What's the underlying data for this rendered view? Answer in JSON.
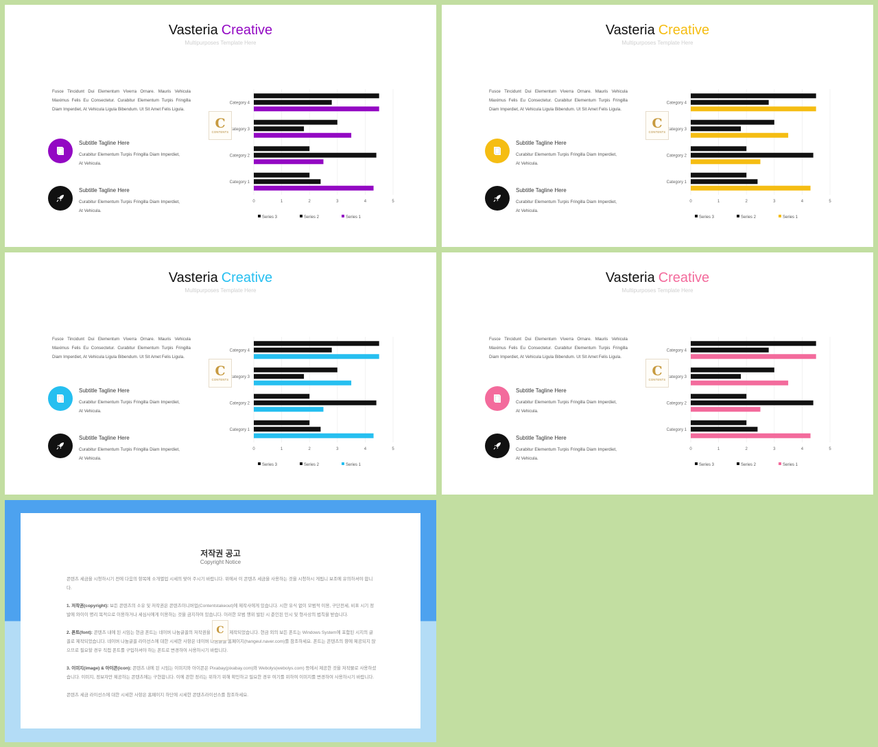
{
  "slides": [
    {
      "title_main": "Vasteria",
      "title_accent": "Creative",
      "subtitle": "Multipurposes Template Here",
      "accent": "#9309c3",
      "description": "Fusce Tincidunt Dui Elementum Viverra Ornare. Mauris Vehicula Maximus Felis Eu Consectetur. Curabitur Elementum Turpis Fringilla Diam Imperdiet, At Vehicula Ligula Bibendum. Ut Sit Amet Felis Ligula.",
      "features": [
        {
          "title": "Subtitle Tagline Here",
          "text": "Curabitur Elementum Turpis Fringilla Diam Imperdiet, At Vehicula.",
          "icon": "book-icon"
        },
        {
          "title": "Subtitle Tagline Here",
          "text": "Curabitur Elementum Turpis Fringilla Diam Imperdiet, At Vehicula.",
          "icon": "rocket-icon"
        }
      ],
      "logo": {
        "letter": "C",
        "text": "CONTENTS"
      }
    },
    {
      "title_main": "Vasteria",
      "title_accent": "Creative",
      "subtitle": "Multipurposes Template Here",
      "accent": "#f5bd13",
      "description": "Fusce Tincidunt Dui Elementum Viverra Ornare. Mauris Vehicula Maximus Felis Eu Consectetur. Curabitur Elementum Turpis Fringilla Diam Imperdiet, At Vehicula Ligula Bibendum. Ut Sit Amet Felis Ligula.",
      "features": [
        {
          "title": "Subtitle Tagline Here",
          "text": "Curabitur Elementum Turpis Fringilla Diam Imperdiet, At Vehicula.",
          "icon": "book-icon"
        },
        {
          "title": "Subtitle Tagline Here",
          "text": "Curabitur Elementum Turpis Fringilla Diam Imperdiet, At Vehicula.",
          "icon": "rocket-icon"
        }
      ],
      "logo": {
        "letter": "C",
        "text": "CONTENTS"
      }
    },
    {
      "title_main": "Vasteria",
      "title_accent": "Creative",
      "subtitle": "Multipurposes Template Here",
      "accent": "#26bff0",
      "description": "Fusce Tincidunt Dui Elementum Viverra Ornare. Mauris Vehicula Maximus Felis Eu Consectetur. Curabitur Elementum Turpis Fringilla Diam Imperdiet, At Vehicula Ligula Bibendum. Ut Sit Amet Felis Ligula.",
      "features": [
        {
          "title": "Subtitle Tagline Here",
          "text": "Curabitur Elementum Turpis Fringilla Diam Imperdiet, At Vehicula.",
          "icon": "book-icon"
        },
        {
          "title": "Subtitle Tagline Here",
          "text": "Curabitur Elementum Turpis Fringilla Diam Imperdiet, At Vehicula.",
          "icon": "rocket-icon"
        }
      ],
      "logo": {
        "letter": "C",
        "text": "CONTENTS"
      }
    },
    {
      "title_main": "Vasteria",
      "title_accent": "Creative",
      "subtitle": "Multipurposes Template Here",
      "accent": "#f36b9c",
      "description": "Fusce Tincidunt Dui Elementum Viverra Ornare. Mauris Vehicula Maximus Felis Eu Consectetur. Curabitur Elementum Turpis Fringilla Diam Imperdiet, At Vehicula Ligula Bibendum. Ut Sit Amet Felis Ligula.",
      "features": [
        {
          "title": "Subtitle Tagline Here",
          "text": "Curabitur Elementum Turpis Fringilla Diam Imperdiet, At Vehicula.",
          "icon": "book-icon"
        },
        {
          "title": "Subtitle Tagline Here",
          "text": "Curabitur Elementum Turpis Fringilla Diam Imperdiet, At Vehicula.",
          "icon": "rocket-icon"
        }
      ],
      "logo": {
        "letter": "C",
        "text": "CONTENTS"
      }
    }
  ],
  "chart_data": [
    {
      "type": "bar",
      "orientation": "horizontal",
      "categories": [
        "Category 1",
        "Category 2",
        "Category 3",
        "Category 4"
      ],
      "series": [
        {
          "name": "Series 1",
          "values": [
            4.3,
            2.5,
            3.5,
            4.5
          ],
          "color": "#9309c3"
        },
        {
          "name": "Series 2",
          "values": [
            2.4,
            4.4,
            1.8,
            2.8
          ],
          "color": "#111111"
        },
        {
          "name": "Series 3",
          "values": [
            2.0,
            2.0,
            3.0,
            4.5
          ],
          "color": "#111111"
        }
      ],
      "xlim": [
        0,
        5
      ],
      "xticks": [
        "0",
        "1",
        "2",
        "3",
        "4",
        "5"
      ],
      "legend_position": "bottom",
      "legend_order": [
        "Series 3",
        "Series 2",
        "Series 1"
      ]
    },
    {
      "type": "bar",
      "orientation": "horizontal",
      "categories": [
        "Category 1",
        "Category 2",
        "Category 3",
        "Category 4"
      ],
      "series": [
        {
          "name": "Series 1",
          "values": [
            4.3,
            2.5,
            3.5,
            4.5
          ],
          "color": "#f5bd13"
        },
        {
          "name": "Series 2",
          "values": [
            2.4,
            4.4,
            1.8,
            2.8
          ],
          "color": "#111111"
        },
        {
          "name": "Series 3",
          "values": [
            2.0,
            2.0,
            3.0,
            4.5
          ],
          "color": "#111111"
        }
      ],
      "xlim": [
        0,
        5
      ],
      "xticks": [
        "0",
        "1",
        "2",
        "3",
        "4",
        "5"
      ],
      "legend_position": "bottom",
      "legend_order": [
        "Series 3",
        "Series 2",
        "Series 1"
      ]
    },
    {
      "type": "bar",
      "orientation": "horizontal",
      "categories": [
        "Category 1",
        "Category 2",
        "Category 3",
        "Category 4"
      ],
      "series": [
        {
          "name": "Series 1",
          "values": [
            4.3,
            2.5,
            3.5,
            4.5
          ],
          "color": "#26bff0"
        },
        {
          "name": "Series 2",
          "values": [
            2.4,
            4.4,
            1.8,
            2.8
          ],
          "color": "#111111"
        },
        {
          "name": "Series 3",
          "values": [
            2.0,
            2.0,
            3.0,
            4.5
          ],
          "color": "#111111"
        }
      ],
      "xlim": [
        0,
        5
      ],
      "xticks": [
        "0",
        "1",
        "2",
        "3",
        "4",
        "5"
      ],
      "legend_position": "bottom",
      "legend_order": [
        "Series 3",
        "Series 2",
        "Series 1"
      ]
    },
    {
      "type": "bar",
      "orientation": "horizontal",
      "categories": [
        "Category 1",
        "Category 2",
        "Category 3",
        "Category 4"
      ],
      "series": [
        {
          "name": "Series 1",
          "values": [
            4.3,
            2.5,
            3.5,
            4.5
          ],
          "color": "#f36b9c"
        },
        {
          "name": "Series 2",
          "values": [
            2.4,
            4.4,
            1.8,
            2.8
          ],
          "color": "#111111"
        },
        {
          "name": "Series 3",
          "values": [
            2.0,
            2.0,
            3.0,
            4.5
          ],
          "color": "#111111"
        }
      ],
      "xlim": [
        0,
        5
      ],
      "xticks": [
        "0",
        "1",
        "2",
        "3",
        "4",
        "5"
      ],
      "legend_position": "bottom",
      "legend_order": [
        "Series 3",
        "Series 2",
        "Series 1"
      ]
    }
  ],
  "notice": {
    "title": "저작권 공고",
    "subtitle": "Copyright Notice",
    "intro": "콘텐츠 세금을 시청하시기 전에 다음의 항목에 소개별업 시세의 맞어 주시기 바랍니다. 위에서 이 콘텐츠 세금을 사용하는 것을 시청하시 게됩니 보조에 유의하셔야 합니다.",
    "p1_label": "1. 저작권(copyright):",
    "p1_text": "보든 콘텐츠의 소유 및 저작권은 콘텐츠이니버업(Contentstakeout)에 제작사에게 있습니다. 시한 유식 없이 모범적 이용, 구단전세, 비표 시기 정발에 와이이 명리 목적으로 이용하거나 세심사에게 이용하는 것을 금지하여 있습니다. 이러한 모범 행위 발된 시 준인된 민시 및 형사상의 법칙을 받습니다.",
    "p2_label": "2. 폰트(font):",
    "p2_text": "콘텐츠 내에 된 시임는 현금 폰트는 네이버 나눔글꼴의 저작권을 이기었어 제작되었습니다. 현금 외의 보든 폰트는 Windows System에 포함된 시지의 글꼴로 제작되었습니다. 네이버 나눔글꼴 라이선스에 대한 시세한 사항은 네이버 나눔글꼴 홈페이지(hangeul.naver.com)를 참조하세요. 폰트는 콘텐츠의 향에 제공되지 않으므로 필요할 경우 직접 폰트를 구입하셔야 하는 폰트로 변경하여 사용하시기 바랍니다.",
    "p3_label": "3. 이미지(image) & 아이콘(icon):",
    "p3_text": "콘텐츠 내에 된 시임는 이미지와 아이콘은 Pixabay(pixabay.com)와 Webolys(webolys.com) 등에서 제공한 것을 저작물로 사용하셨습니다. 이미지, 정보자만 제공하는 콘텐츠에는 구현합니다. 이에 관한 정리는 위하기 위해 확인하고 필요한 경우 여기를 위하여 이미지를 변경하여 사용하시기 바랍니다.",
    "outro": "콘텐츠 세금 라이선스에 대한 시세한 사항은 홈페이지 하단에 시세한 콘텐츠라이선스를 참조하세요.",
    "logo_letter": "C"
  }
}
